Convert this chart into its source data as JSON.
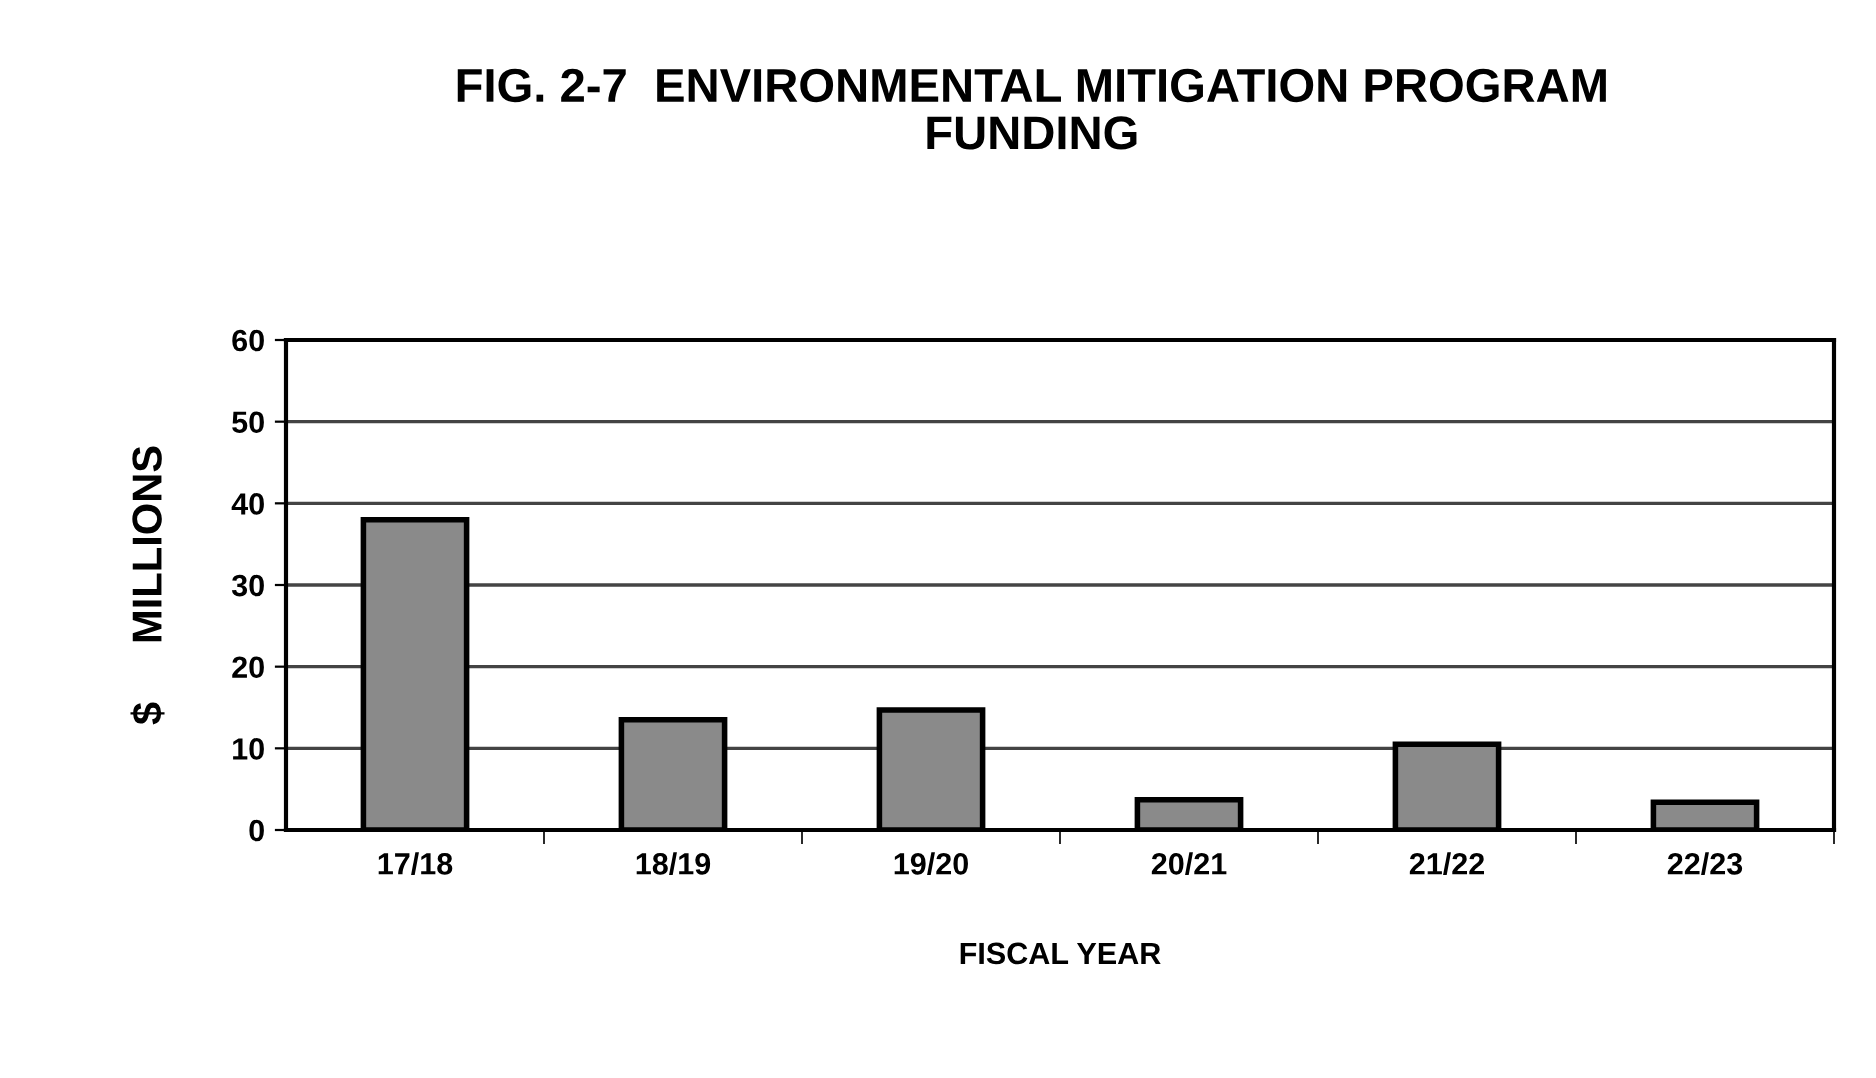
{
  "chart_data": {
    "type": "bar",
    "title": "FIG. 2-7  ENVIRONMENTAL MITIGATION PROGRAM\nFUNDING",
    "xlabel": "FISCAL YEAR",
    "ylabel": "$     MILLIONS",
    "categories": [
      "17/18",
      "18/19",
      "19/20",
      "20/21",
      "21/22",
      "22/23"
    ],
    "values": [
      38.0,
      13.5,
      14.7,
      3.7,
      10.5,
      3.4
    ],
    "color": "#8a8a8a",
    "ylim": [
      0,
      60
    ],
    "yticks": [
      0,
      10,
      20,
      30,
      40,
      50,
      60
    ],
    "grid": "y",
    "legend": false
  }
}
